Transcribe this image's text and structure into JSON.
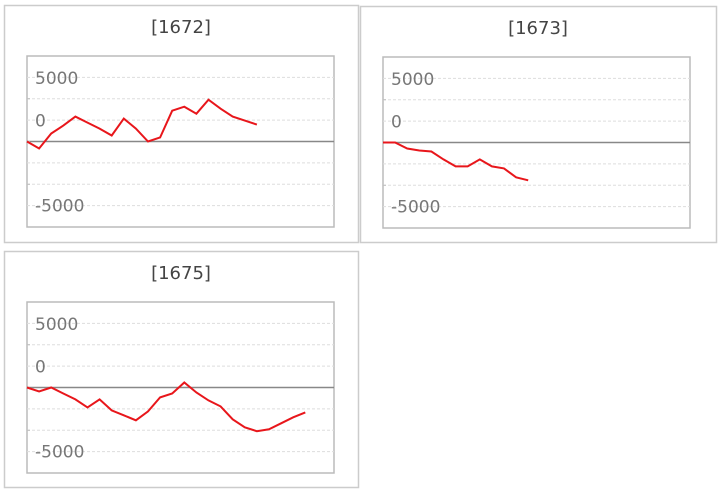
{
  "chart_data": [
    {
      "type": "line",
      "title": "[1672]",
      "ylim": [
        -10000,
        10000
      ],
      "yticks": [
        -5000,
        0,
        5000
      ],
      "ygrid": [
        -7500,
        -5000,
        -2500,
        2500,
        5000,
        7500
      ],
      "grid": true,
      "color": "#e8161b",
      "values": [
        0,
        -814,
        930,
        1860,
        2910,
        2210,
        1510,
        700,
        2675,
        1510,
        0,
        465,
        3605,
        4070,
        3255,
        4885,
        3840,
        2910,
        2440,
        1975
      ]
    },
    {
      "type": "line",
      "title": "[1673]",
      "ylim": [
        -10000,
        10000
      ],
      "yticks": [
        -5000,
        0,
        5000
      ],
      "ygrid": [
        -7500,
        -5000,
        -2500,
        2500,
        5000,
        7500
      ],
      "grid": true,
      "color": "#e8161b",
      "values": [
        0,
        0,
        -700,
        -930,
        -1050,
        -1975,
        -2790,
        -2790,
        -1975,
        -2790,
        -3025,
        -4070,
        -4420
      ]
    },
    {
      "type": "line",
      "title": "[1675]",
      "ylim": [
        -10000,
        10000
      ],
      "yticks": [
        -5000,
        0,
        5000
      ],
      "ygrid": [
        -7500,
        -5000,
        -2500,
        2500,
        5000,
        7500
      ],
      "grid": true,
      "color": "#e8161b",
      "values": [
        0,
        -465,
        0,
        -700,
        -1395,
        -2325,
        -1395,
        -2675,
        -3255,
        -3840,
        -2790,
        -1160,
        -700,
        580,
        -580,
        -1510,
        -2210,
        -3720,
        -4650,
        -5115,
        -4885,
        -4185,
        -3490,
        -2910
      ]
    }
  ]
}
